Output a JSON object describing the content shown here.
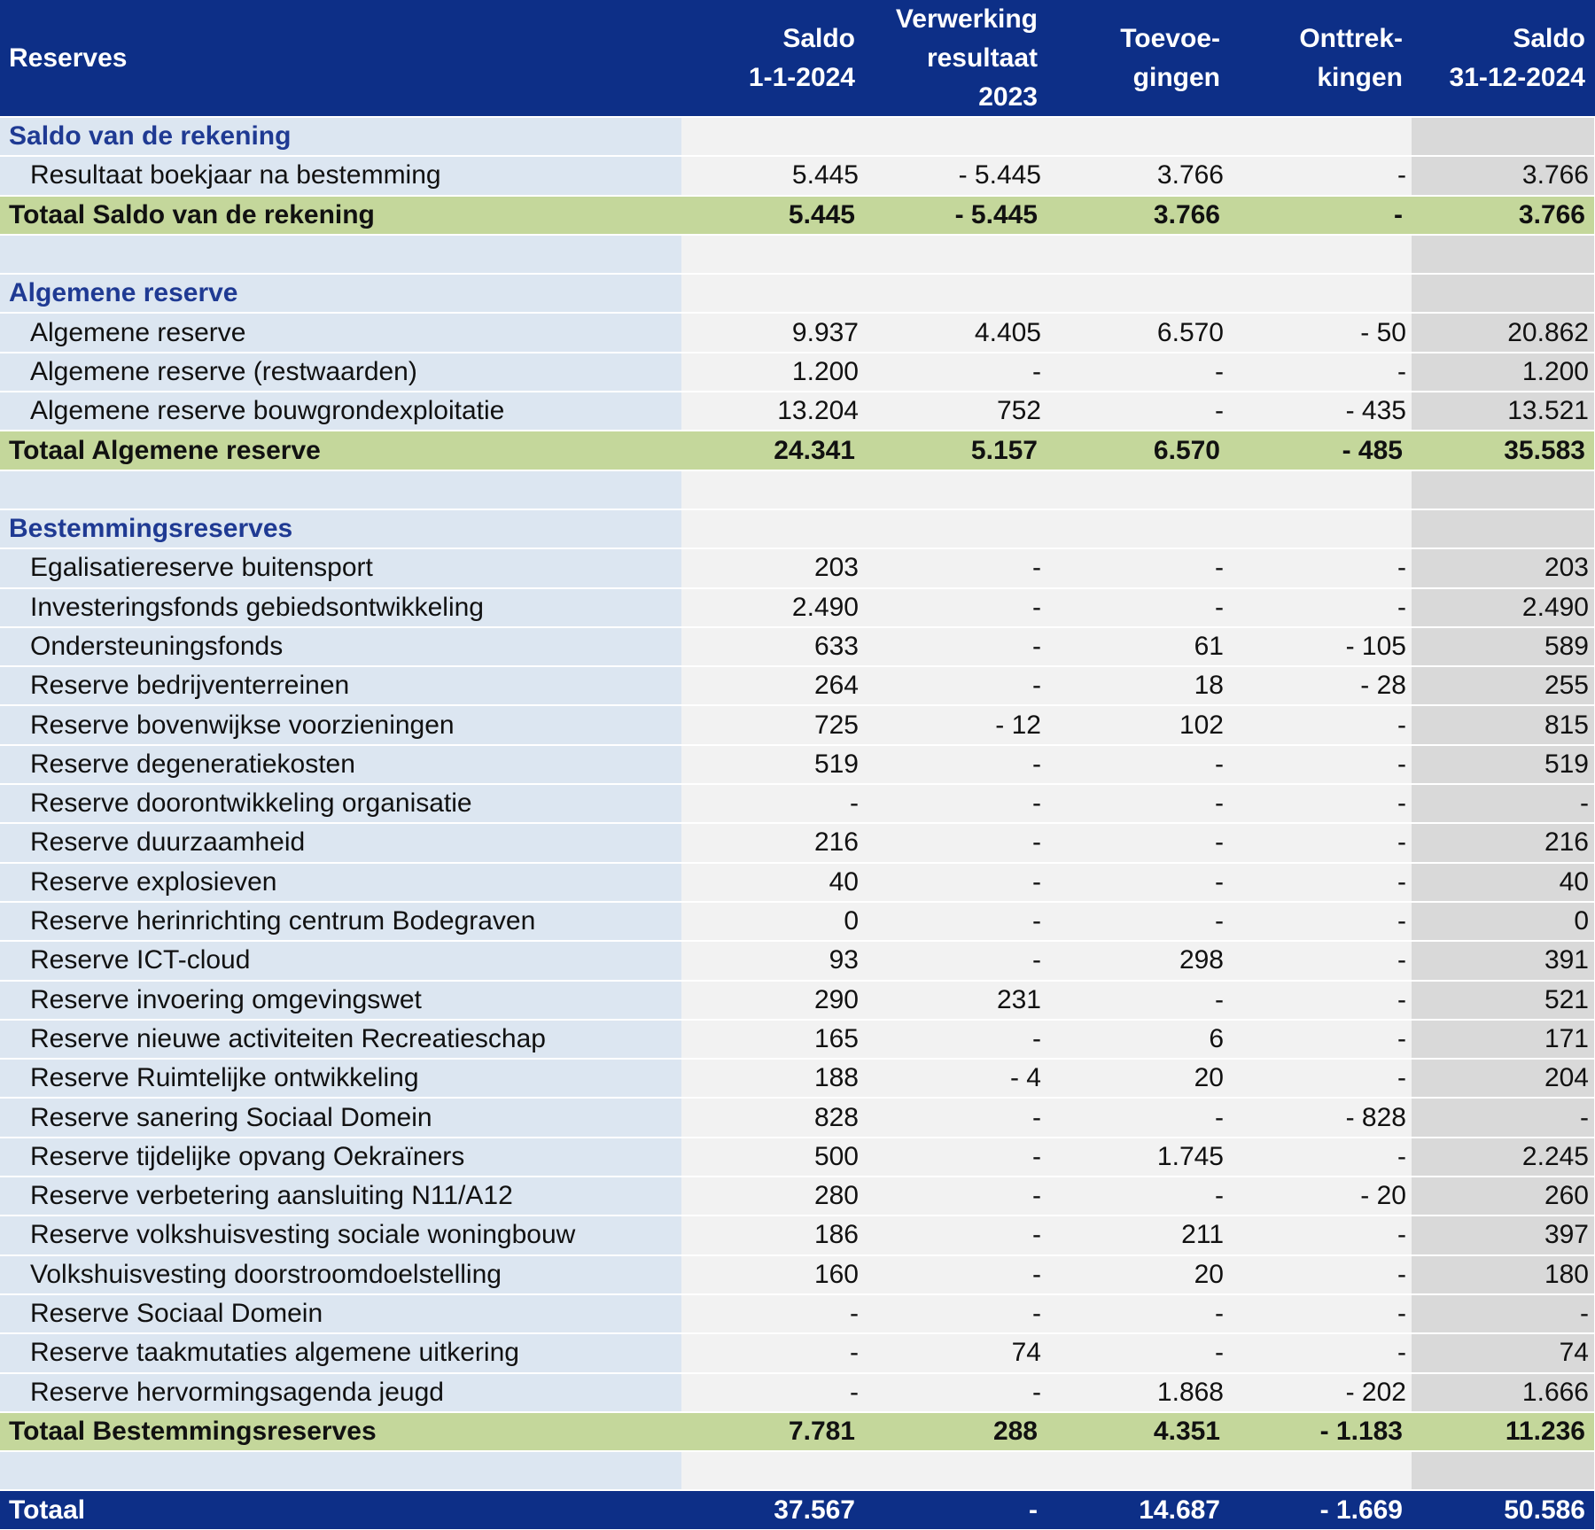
{
  "header": {
    "columns": [
      [
        "Reserves"
      ],
      [
        "Saldo",
        "1-1-2024"
      ],
      [
        "Verwerking",
        "resultaat",
        "2023"
      ],
      [
        "Toevoe-",
        "gingen"
      ],
      [
        "Onttrek-",
        "kingen"
      ],
      [
        "Saldo",
        "31-12-2024"
      ]
    ]
  },
  "sections": [
    {
      "title": "Saldo van de rekening",
      "rows": [
        [
          "Resultaat boekjaar na bestemming",
          "5.445",
          "- 5.445",
          "3.766",
          "-",
          "3.766"
        ]
      ],
      "total": [
        "Totaal Saldo van de rekening",
        "5.445",
        "- 5.445",
        "3.766",
        "-",
        "3.766"
      ]
    },
    {
      "title": "Algemene reserve",
      "rows": [
        [
          "Algemene reserve",
          "9.937",
          "4.405",
          "6.570",
          "- 50",
          "20.862"
        ],
        [
          "Algemene reserve (restwaarden)",
          "1.200",
          "-",
          "-",
          "-",
          "1.200"
        ],
        [
          "Algemene reserve bouwgrondexploitatie",
          "13.204",
          "752",
          "-",
          "- 435",
          "13.521"
        ]
      ],
      "total": [
        "Totaal Algemene reserve",
        "24.341",
        "5.157",
        "6.570",
        "- 485",
        "35.583"
      ]
    },
    {
      "title": "Bestemmingsreserves",
      "rows": [
        [
          "Egalisatiereserve buitensport",
          "203",
          "-",
          "-",
          "-",
          "203"
        ],
        [
          "Investeringsfonds gebiedsontwikkeling",
          "2.490",
          "-",
          "-",
          "-",
          "2.490"
        ],
        [
          "Ondersteuningsfonds",
          "633",
          "-",
          "61",
          "- 105",
          "589"
        ],
        [
          "Reserve bedrijventerreinen",
          "264",
          "-",
          "18",
          "- 28",
          "255"
        ],
        [
          "Reserve bovenwijkse voorzieningen",
          "725",
          "- 12",
          "102",
          "-",
          "815"
        ],
        [
          "Reserve degeneratiekosten",
          "519",
          "-",
          "-",
          "-",
          "519"
        ],
        [
          "Reserve doorontwikkeling organisatie",
          "-",
          "-",
          "-",
          "-",
          "-"
        ],
        [
          "Reserve duurzaamheid",
          "216",
          "-",
          "-",
          "-",
          "216"
        ],
        [
          "Reserve explosieven",
          "40",
          "-",
          "-",
          "-",
          "40"
        ],
        [
          "Reserve herinrichting centrum Bodegraven",
          "0",
          "-",
          "-",
          "-",
          "0"
        ],
        [
          "Reserve ICT-cloud",
          "93",
          "-",
          "298",
          "-",
          "391"
        ],
        [
          "Reserve invoering omgevingswet",
          "290",
          "231",
          "-",
          "-",
          "521"
        ],
        [
          "Reserve nieuwe activiteiten Recreatieschap",
          "165",
          "-",
          "6",
          "-",
          "171"
        ],
        [
          "Reserve Ruimtelijke ontwikkeling",
          "188",
          "- 4",
          "20",
          "-",
          "204"
        ],
        [
          "Reserve sanering Sociaal Domein",
          "828",
          "-",
          "-",
          "- 828",
          "-"
        ],
        [
          "Reserve tijdelijke opvang Oekraïners",
          "500",
          "-",
          "1.745",
          "-",
          "2.245"
        ],
        [
          "Reserve verbetering aansluiting N11/A12",
          "280",
          "-",
          "-",
          "- 20",
          "260"
        ],
        [
          "Reserve volkshuisvesting sociale woningbouw",
          "186",
          "-",
          "211",
          "-",
          "397"
        ],
        [
          "Volkshuisvesting doorstroomdoelstelling",
          "160",
          "-",
          "20",
          "-",
          "180"
        ],
        [
          "Reserve Sociaal Domein",
          "-",
          "-",
          "-",
          "-",
          "-"
        ],
        [
          "Reserve taakmutaties algemene uitkering",
          "-",
          "74",
          "-",
          "-",
          "74"
        ],
        [
          "Reserve hervormingsagenda jeugd",
          "-",
          "-",
          "1.868",
          "- 202",
          "1.666"
        ]
      ],
      "total": [
        "Totaal Bestemmingsreserves",
        "7.781",
        "288",
        "4.351",
        "- 1.183",
        "11.236"
      ]
    }
  ],
  "grand_total": [
    "Totaal",
    "37.567",
    "-",
    "14.687",
    "- 1.669",
    "50.586"
  ]
}
